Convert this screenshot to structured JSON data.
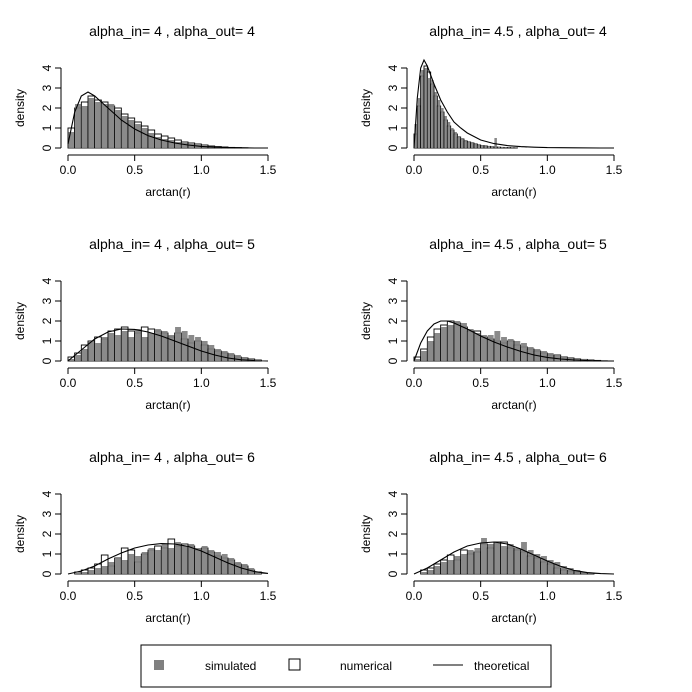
{
  "figure": {
    "legend": {
      "items": [
        {
          "label": "simulated",
          "symbol": "filled-square"
        },
        {
          "label": "numerical",
          "symbol": "open-square"
        },
        {
          "label": "theoretical",
          "symbol": "line"
        }
      ]
    }
  },
  "colors": {
    "simulated": "#808080",
    "numerical_border": "#000000",
    "theoretical": "#000000",
    "background": "#ffffff"
  },
  "chart_data": [
    {
      "type": "bar",
      "title": "alpha_in= 4 , alpha_out= 4",
      "xlabel": "arctan(r)",
      "ylabel": "density",
      "xlim": [
        0,
        1.55
      ],
      "ylim": [
        0,
        4
      ],
      "xticks": [
        "0.0",
        "0.5",
        "1.0",
        "1.5"
      ],
      "yticks": [
        "0",
        "1",
        "2",
        "3",
        "4"
      ],
      "bin_width": 0.05,
      "series": [
        {
          "name": "simulated",
          "values": [
            0.8,
            2.2,
            2.1,
            2.5,
            2.3,
            2.2,
            2.2,
            1.9,
            1.6,
            1.4,
            1.2,
            1.0,
            0.75,
            0.55,
            0.45,
            0.4,
            0.3,
            0.25,
            0.2,
            0.15,
            0.1,
            0.08,
            0.05,
            0.03,
            0.02,
            0.01,
            0.01,
            0.0,
            0.0,
            0.0
          ]
        },
        {
          "name": "numerical",
          "values": [
            1.0,
            2.0,
            2.3,
            2.6,
            2.4,
            2.3,
            2.1,
            2.0,
            1.7,
            1.5,
            1.3,
            1.1,
            0.9,
            0.7,
            0.6,
            0.5,
            0.4,
            0.3,
            0.25,
            0.2,
            0.15,
            0.1,
            0.07,
            0.05,
            0.03,
            0.02,
            0.01,
            0.0,
            0.0,
            0.0
          ]
        },
        {
          "name": "theoretical",
          "x": [
            0.0,
            0.05,
            0.1,
            0.15,
            0.2,
            0.25,
            0.3,
            0.35,
            0.4,
            0.5,
            0.6,
            0.7,
            0.8,
            0.9,
            1.0,
            1.1,
            1.2,
            1.3,
            1.4,
            1.5
          ],
          "values": [
            0.2,
            1.8,
            2.6,
            2.8,
            2.6,
            2.3,
            2.0,
            1.7,
            1.4,
            0.95,
            0.62,
            0.4,
            0.25,
            0.15,
            0.08,
            0.04,
            0.02,
            0.01,
            0.0,
            0.0
          ]
        }
      ]
    },
    {
      "type": "bar",
      "title": "alpha_in= 4.5 , alpha_out= 4",
      "xlabel": "arctan(r)",
      "ylabel": "density",
      "xlim": [
        0,
        1.55
      ],
      "ylim": [
        0,
        4
      ],
      "xticks": [
        "0.0",
        "0.5",
        "1.0",
        "1.5"
      ],
      "yticks": [
        "0",
        "1",
        "2",
        "3",
        "4"
      ],
      "bin_width": 0.025,
      "series": [
        {
          "name": "simulated",
          "values": [
            1.2,
            2.5,
            3.9,
            4.0,
            3.5,
            3.4,
            2.8,
            2.4,
            2.0,
            1.6,
            1.3,
            1.0,
            0.8,
            0.6,
            0.5,
            0.4,
            0.3,
            0.3,
            0.2,
            0.15,
            0.15,
            0.1,
            0.1,
            0.1,
            0.5,
            0.05,
            0.05,
            0.04,
            0.03,
            0.02,
            0.02,
            0.01,
            0.01,
            0.01,
            0.0,
            0.0,
            0.0,
            0.0,
            0.0,
            0.0
          ]
        },
        {
          "name": "numerical",
          "values": [
            0.7,
            2.1,
            3.6,
            4.1,
            3.8,
            3.2,
            2.6,
            2.1,
            1.8,
            1.4,
            1.1,
            0.9,
            0.7,
            0.55,
            0.45,
            0.35,
            0.3,
            0.25,
            0.2,
            0.15,
            0.12,
            0.1,
            0.08,
            0.06,
            0.05,
            0.04,
            0.03,
            0.02,
            0.02,
            0.01,
            0.01,
            0.0,
            0.0,
            0.0,
            0.0,
            0.0,
            0.0,
            0.0,
            0.0,
            0.0
          ]
        },
        {
          "name": "theoretical",
          "x": [
            0.0,
            0.025,
            0.05,
            0.075,
            0.1,
            0.15,
            0.2,
            0.25,
            0.3,
            0.35,
            0.4,
            0.5,
            0.6,
            0.7,
            0.8,
            0.9,
            1.0,
            1.2,
            1.4,
            1.5
          ],
          "values": [
            0.0,
            2.5,
            4.0,
            4.4,
            4.1,
            3.2,
            2.4,
            1.8,
            1.3,
            1.0,
            0.75,
            0.4,
            0.22,
            0.12,
            0.07,
            0.04,
            0.02,
            0.01,
            0.0,
            0.0
          ]
        }
      ]
    },
    {
      "type": "bar",
      "title": "alpha_in= 4 , alpha_out= 5",
      "xlabel": "arctan(r)",
      "ylabel": "density",
      "xlim": [
        0,
        1.55
      ],
      "ylim": [
        0,
        4
      ],
      "xticks": [
        "0.0",
        "0.5",
        "1.0",
        "1.5"
      ],
      "yticks": [
        "0",
        "1",
        "2",
        "3",
        "4"
      ],
      "bin_width": 0.05,
      "series": [
        {
          "name": "simulated",
          "values": [
            0.1,
            0.3,
            0.6,
            1.0,
            0.9,
            1.2,
            1.4,
            1.3,
            1.5,
            1.2,
            1.6,
            1.2,
            1.4,
            1.6,
            1.5,
            1.3,
            1.7,
            1.5,
            1.3,
            1.2,
            1.0,
            0.8,
            0.6,
            0.5,
            0.4,
            0.3,
            0.2,
            0.1,
            0.05,
            0.0
          ]
        },
        {
          "name": "numerical",
          "values": [
            0.2,
            0.4,
            0.8,
            1.0,
            1.2,
            1.1,
            1.5,
            1.6,
            1.7,
            1.5,
            1.4,
            1.7,
            1.6,
            1.5,
            1.4,
            1.2,
            1.4,
            1.1,
            0.9,
            1.0,
            0.8,
            0.6,
            0.5,
            0.4,
            0.3,
            0.2,
            0.15,
            0.1,
            0.05,
            0.0
          ]
        },
        {
          "name": "theoretical",
          "x": [
            0.0,
            0.1,
            0.2,
            0.3,
            0.4,
            0.5,
            0.6,
            0.7,
            0.8,
            0.9,
            1.0,
            1.1,
            1.2,
            1.3,
            1.4,
            1.5
          ],
          "values": [
            0.0,
            0.55,
            1.1,
            1.45,
            1.6,
            1.58,
            1.45,
            1.25,
            1.0,
            0.75,
            0.5,
            0.3,
            0.15,
            0.06,
            0.02,
            0.0
          ]
        }
      ]
    },
    {
      "type": "bar",
      "title": "alpha_in= 4.5 , alpha_out= 5",
      "xlabel": "arctan(r)",
      "ylabel": "density",
      "xlim": [
        0,
        1.55
      ],
      "ylim": [
        0,
        4
      ],
      "xticks": [
        "0.0",
        "0.5",
        "1.0",
        "1.5"
      ],
      "yticks": [
        "0",
        "1",
        "2",
        "3",
        "4"
      ],
      "bin_width": 0.05,
      "series": [
        {
          "name": "simulated",
          "values": [
            0.1,
            0.5,
            1.0,
            1.4,
            1.7,
            1.8,
            2.0,
            1.9,
            1.6,
            1.4,
            1.3,
            1.3,
            1.5,
            1.2,
            1.1,
            1.0,
            0.9,
            0.7,
            0.6,
            0.5,
            0.4,
            0.3,
            0.2,
            0.2,
            0.15,
            0.1,
            0.05,
            0.03,
            0.02,
            0.0
          ]
        },
        {
          "name": "numerical",
          "values": [
            0.2,
            0.6,
            1.2,
            1.6,
            1.8,
            2.0,
            1.9,
            1.7,
            1.5,
            1.5,
            1.2,
            1.1,
            1.0,
            0.9,
            1.0,
            0.8,
            0.7,
            0.6,
            0.5,
            0.4,
            0.3,
            0.3,
            0.2,
            0.15,
            0.1,
            0.08,
            0.05,
            0.03,
            0.01,
            0.0
          ]
        },
        {
          "name": "theoretical",
          "x": [
            0.0,
            0.05,
            0.1,
            0.15,
            0.2,
            0.25,
            0.3,
            0.4,
            0.5,
            0.6,
            0.7,
            0.8,
            0.9,
            1.0,
            1.1,
            1.2,
            1.3,
            1.4,
            1.5
          ],
          "values": [
            0.0,
            0.9,
            1.5,
            1.85,
            2.0,
            2.0,
            1.9,
            1.6,
            1.25,
            0.95,
            0.7,
            0.48,
            0.3,
            0.18,
            0.1,
            0.05,
            0.02,
            0.0,
            0.0
          ]
        }
      ]
    },
    {
      "type": "bar",
      "title": "alpha_in= 4 , alpha_out= 6",
      "xlabel": "arctan(r)",
      "ylabel": "density",
      "xlim": [
        0,
        1.55
      ],
      "ylim": [
        0,
        4
      ],
      "xticks": [
        "0.0",
        "0.5",
        "1.0",
        "1.5"
      ],
      "yticks": [
        "0",
        "1",
        "2",
        "3",
        "4"
      ],
      "bin_width": 0.05,
      "series": [
        {
          "name": "simulated",
          "values": [
            0.0,
            0.05,
            0.1,
            0.2,
            0.3,
            0.4,
            0.6,
            0.8,
            0.7,
            1.0,
            0.9,
            1.1,
            1.3,
            1.2,
            1.5,
            1.3,
            1.6,
            1.4,
            1.5,
            1.3,
            1.4,
            1.2,
            1.1,
            1.0,
            0.8,
            0.6,
            0.5,
            0.3,
            0.1,
            0.05
          ]
        },
        {
          "name": "numerical",
          "values": [
            0.0,
            0.1,
            0.2,
            0.3,
            0.5,
            0.95,
            0.4,
            0.8,
            1.3,
            1.2,
            0.6,
            1.0,
            1.2,
            1.4,
            1.3,
            1.75,
            1.4,
            1.5,
            1.4,
            1.2,
            1.3,
            1.1,
            0.9,
            0.8,
            0.7,
            0.5,
            0.4,
            0.2,
            0.1,
            0.0
          ]
        },
        {
          "name": "theoretical",
          "x": [
            0.0,
            0.1,
            0.2,
            0.3,
            0.4,
            0.5,
            0.6,
            0.7,
            0.8,
            0.9,
            1.0,
            1.1,
            1.2,
            1.3,
            1.4,
            1.5
          ],
          "values": [
            0.0,
            0.15,
            0.4,
            0.75,
            1.05,
            1.3,
            1.45,
            1.52,
            1.5,
            1.38,
            1.15,
            0.85,
            0.55,
            0.3,
            0.12,
            0.03
          ]
        }
      ]
    },
    {
      "type": "bar",
      "title": "alpha_in= 4.5 , alpha_out= 6",
      "xlabel": "arctan(r)",
      "ylabel": "density",
      "xlim": [
        0,
        1.55
      ],
      "ylim": [
        0,
        4
      ],
      "xticks": [
        "0.0",
        "0.5",
        "1.0",
        "1.5"
      ],
      "yticks": [
        "0",
        "1",
        "2",
        "3",
        "4"
      ],
      "bin_width": 0.05,
      "series": [
        {
          "name": "simulated",
          "values": [
            0.0,
            0.1,
            0.2,
            0.4,
            0.6,
            0.7,
            0.9,
            1.0,
            1.2,
            1.3,
            1.8,
            1.5,
            1.6,
            1.4,
            1.5,
            1.3,
            1.6,
            1.2,
            1.0,
            0.9,
            0.7,
            0.6,
            0.4,
            0.3,
            0.2,
            0.1,
            0.05,
            0.03,
            0.0,
            0.0
          ]
        },
        {
          "name": "numerical",
          "values": [
            0.0,
            0.2,
            0.3,
            0.5,
            0.7,
            0.95,
            0.7,
            1.2,
            1.0,
            1.1,
            1.5,
            1.3,
            1.6,
            1.6,
            1.3,
            1.2,
            1.1,
            0.9,
            0.8,
            0.6,
            0.5,
            0.3,
            0.2,
            0.15,
            0.1,
            0.05,
            0.03,
            0.0,
            0.0,
            0.0
          ]
        },
        {
          "name": "theoretical",
          "x": [
            0.0,
            0.1,
            0.2,
            0.3,
            0.4,
            0.5,
            0.6,
            0.7,
            0.8,
            0.9,
            1.0,
            1.1,
            1.2,
            1.3,
            1.4,
            1.5
          ],
          "values": [
            0.0,
            0.3,
            0.7,
            1.1,
            1.4,
            1.55,
            1.6,
            1.5,
            1.25,
            0.95,
            0.65,
            0.38,
            0.18,
            0.07,
            0.02,
            0.0
          ]
        }
      ]
    }
  ]
}
